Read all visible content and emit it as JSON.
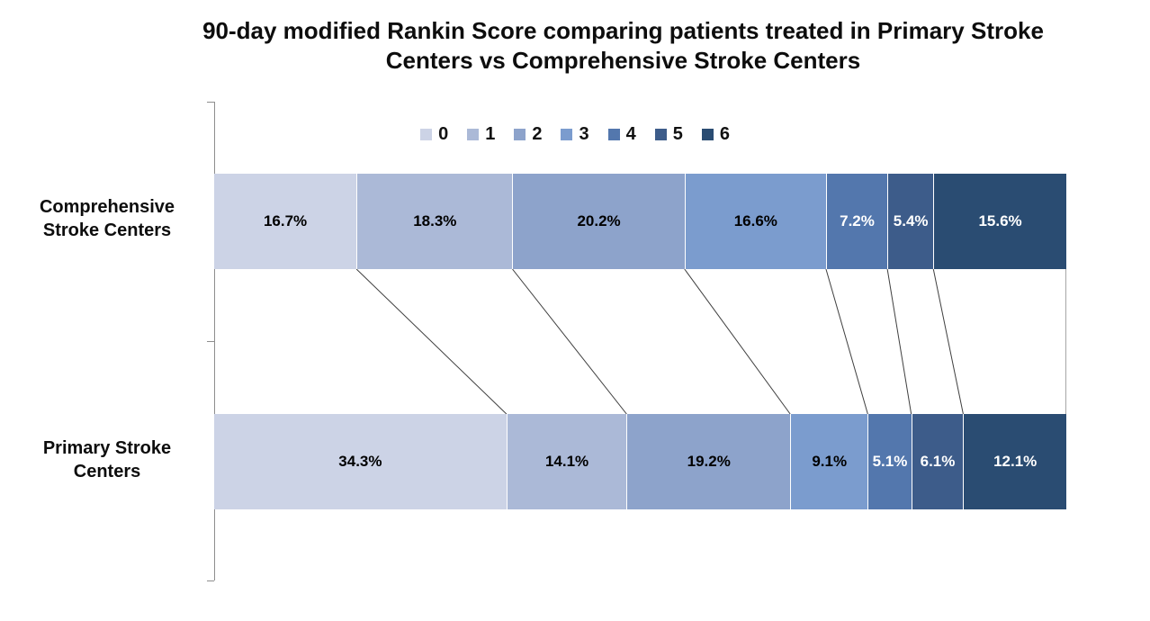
{
  "chart_data": {
    "type": "bar",
    "variant": "horizontal-100pct-stacked",
    "title": "90-day modified Rankin Score comparing patients treated in Primary Stroke Centers vs Comprehensive Stroke Centers",
    "categories": [
      "Comprehensive Stroke Centers",
      "Primary Stroke Centers"
    ],
    "series": [
      {
        "name": "0",
        "color": "#ccd3e6",
        "label_color": "#000000",
        "values": [
          16.7,
          34.3
        ]
      },
      {
        "name": "1",
        "color": "#abb9d7",
        "label_color": "#000000",
        "values": [
          18.3,
          14.1
        ]
      },
      {
        "name": "2",
        "color": "#8da3cb",
        "label_color": "#000000",
        "values": [
          20.2,
          19.2
        ]
      },
      {
        "name": "3",
        "color": "#7b9cce",
        "label_color": "#000000",
        "values": [
          16.6,
          9.1
        ]
      },
      {
        "name": "4",
        "color": "#5377ad",
        "label_color": "#ffffff",
        "values": [
          7.2,
          5.1
        ]
      },
      {
        "name": "5",
        "color": "#3d5c8a",
        "label_color": "#ffffff",
        "values": [
          5.4,
          6.1
        ]
      },
      {
        "name": "6",
        "color": "#2a4c72",
        "label_color": "#ffffff",
        "values": [
          15.6,
          12.1
        ]
      }
    ],
    "value_suffix": "%",
    "xlim": [
      0,
      100
    ],
    "legend": {
      "position": "top",
      "entries": [
        "0",
        "1",
        "2",
        "3",
        "4",
        "5",
        "6"
      ]
    },
    "grid": false,
    "connectors": true
  },
  "style_colors": {
    "axis": "#8e8e8e",
    "connector": "#3f3f3f",
    "end_connector": "#a6a6a6",
    "title_text": "#0d0d0d"
  }
}
